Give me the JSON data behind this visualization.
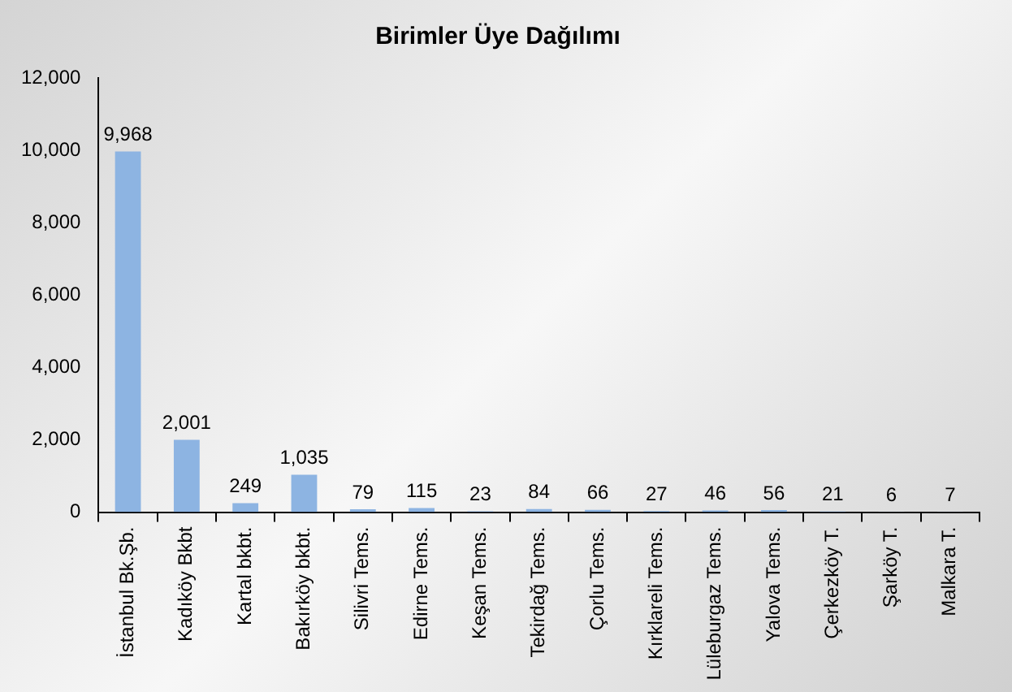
{
  "chart_data": {
    "type": "bar",
    "title": "Birimler Üye Dağılımı",
    "categories": [
      "İstanbul Bk.Şb.",
      "Kadıköy Bkbt",
      "Kartal bkbt.",
      "Bakırköy bkbt.",
      "Silivri Tems.",
      "Edirne Tems.",
      "Keşan Tems.",
      "Tekirdağ Tems.",
      "Çorlu Tems.",
      "Kırklareli Tems.",
      "Lüleburgaz Tems.",
      "Yalova Tems.",
      "Çerkezköy T.",
      "Şarköy T.",
      "Malkara T."
    ],
    "values": [
      9968,
      2001,
      249,
      1035,
      79,
      115,
      23,
      84,
      66,
      27,
      46,
      56,
      21,
      6,
      7
    ],
    "value_labels": [
      "9,968",
      "2,001",
      "249",
      "1,035",
      "79",
      "115",
      "23",
      "84",
      "66",
      "27",
      "46",
      "56",
      "21",
      "6",
      "7"
    ],
    "color": "#8db4e2",
    "ylim": [
      0,
      12000
    ],
    "yticks": [
      0,
      {
        "value": 2000,
        "label": "2,000"
      },
      {
        "value": 4000,
        "label": "4,000"
      },
      {
        "value": 6000,
        "label": "6,000"
      },
      {
        "value": 8000,
        "label": "8,000"
      },
      {
        "value": 10000,
        "label": "10,000"
      },
      {
        "value": 12000,
        "label": "12,000"
      }
    ],
    "grid": false,
    "legend": false
  }
}
